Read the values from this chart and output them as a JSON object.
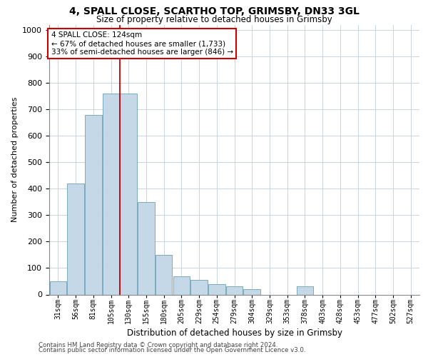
{
  "title1": "4, SPALL CLOSE, SCARTHO TOP, GRIMSBY, DN33 3GL",
  "title2": "Size of property relative to detached houses in Grimsby",
  "xlabel": "Distribution of detached houses by size in Grimsby",
  "ylabel": "Number of detached properties",
  "bar_color": "#c5d8e8",
  "bar_edge_color": "#7aaabe",
  "categories": [
    "31sqm",
    "56sqm",
    "81sqm",
    "105sqm",
    "130sqm",
    "155sqm",
    "180sqm",
    "205sqm",
    "229sqm",
    "254sqm",
    "279sqm",
    "304sqm",
    "329sqm",
    "353sqm",
    "378sqm",
    "403sqm",
    "428sqm",
    "453sqm",
    "477sqm",
    "502sqm",
    "527sqm"
  ],
  "values": [
    50,
    420,
    680,
    760,
    760,
    350,
    150,
    70,
    55,
    40,
    30,
    20,
    0,
    0,
    30,
    0,
    0,
    0,
    0,
    0,
    0
  ],
  "red_line_x": 3.5,
  "annotation_text": "4 SPALL CLOSE: 124sqm\n← 67% of detached houses are smaller (1,733)\n33% of semi-detached houses are larger (846) →",
  "annotation_box_facecolor": "#ffffff",
  "annotation_box_edgecolor": "#cc0000",
  "footer1": "Contains HM Land Registry data © Crown copyright and database right 2024.",
  "footer2": "Contains public sector information licensed under the Open Government Licence v3.0.",
  "ylim": [
    0,
    1020
  ],
  "yticks": [
    0,
    100,
    200,
    300,
    400,
    500,
    600,
    700,
    800,
    900,
    1000
  ],
  "grid_color": "#c8d4df",
  "bg_color": "#ffffff",
  "title1_fontsize": 10,
  "title2_fontsize": 8.5,
  "ylabel_fontsize": 8,
  "xlabel_fontsize": 8.5,
  "tick_fontsize": 8,
  "xtick_fontsize": 7
}
